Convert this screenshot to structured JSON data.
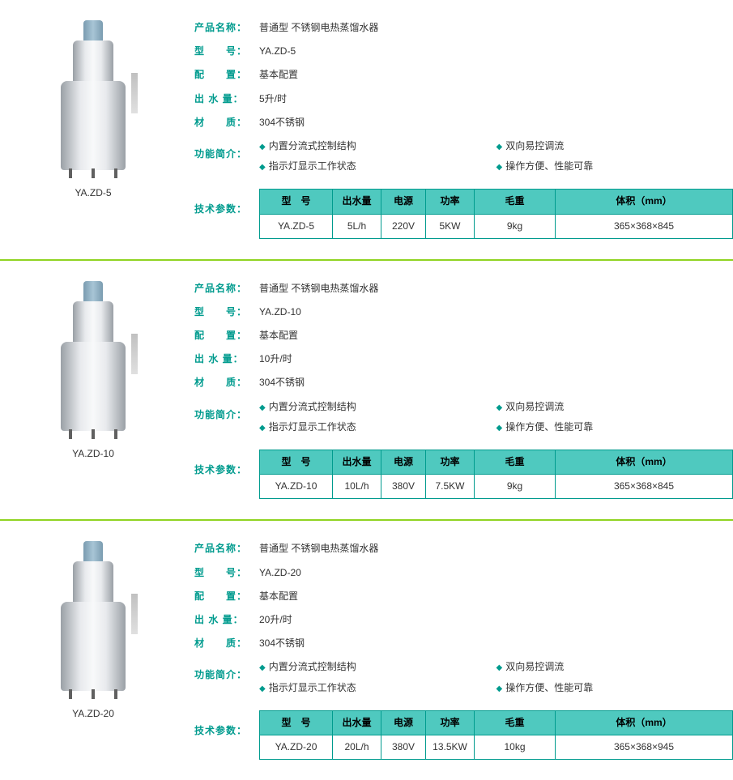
{
  "labels": {
    "productName": "产品名称：",
    "model": "型　　号：",
    "config": "配　　置：",
    "output": "出 水 量：",
    "material": "材　　质：",
    "features": "功能简介：",
    "techParams": "技术参数："
  },
  "tableHeaders": {
    "model": "型　号",
    "output": "出水量",
    "powerSource": "电源",
    "power": "功率",
    "weight": "毛重",
    "volume": "体积（mm）"
  },
  "featureItems": {
    "f1": "内置分流式控制结构",
    "f2": "双向易控调流",
    "f3": "指示灯显示工作状态",
    "f4": "操作方便、性能可靠"
  },
  "products": [
    {
      "imgLabel": "YA.ZD-5",
      "productName": "普通型 不锈钢电热蒸馏水器",
      "model": "YA.ZD-5",
      "config": "基本配置",
      "output": "5升/时",
      "material": "304不锈钢",
      "spec": {
        "model": "YA.ZD-5",
        "output": "5L/h",
        "powerSource": "220V",
        "power": "5KW",
        "weight": "9kg",
        "volume": "365×368×845"
      }
    },
    {
      "imgLabel": "YA.ZD-10",
      "productName": "普通型 不锈钢电热蒸馏水器",
      "model": "YA.ZD-10",
      "config": "基本配置",
      "output": "10升/时",
      "material": "304不锈钢",
      "spec": {
        "model": "YA.ZD-10",
        "output": "10L/h",
        "powerSource": "380V",
        "power": "7.5KW",
        "weight": "9kg",
        "volume": "365×368×845"
      }
    },
    {
      "imgLabel": "YA.ZD-20",
      "productName": "普通型 不锈钢电热蒸馏水器",
      "model": "YA.ZD-20",
      "config": "基本配置",
      "output": "20升/时",
      "material": "304不锈钢",
      "spec": {
        "model": "YA.ZD-20",
        "output": "20L/h",
        "powerSource": "380V",
        "power": "13.5KW",
        "weight": "10kg",
        "volume": "365×368×945"
      }
    }
  ],
  "colors": {
    "accent": "#009b8e",
    "headerBg": "#4fc9bf",
    "divider": "#8fd422"
  }
}
